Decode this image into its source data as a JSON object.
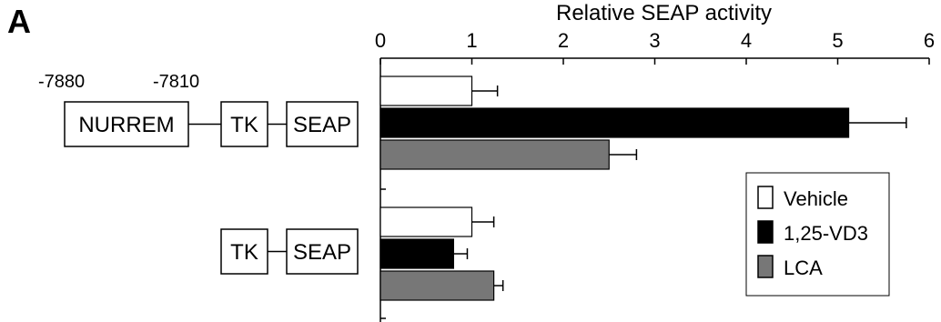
{
  "panel_label": "A",
  "construct_1": {
    "pos_left": "-7880",
    "pos_right": "-7810",
    "boxes": [
      "NURREM",
      "TK",
      "SEAP"
    ]
  },
  "construct_2": {
    "boxes": [
      "TK",
      "SEAP"
    ]
  },
  "chart_data": {
    "type": "bar",
    "orientation": "horizontal",
    "xlabel": "Relative SEAP activity",
    "xlim": [
      0,
      6
    ],
    "xticks": [
      0,
      1,
      2,
      3,
      4,
      5,
      6
    ],
    "xaxis_position": "top",
    "grid": false,
    "legend_position": "bottom-right",
    "categories": [
      "NURREM-TK-SEAP",
      "TK-SEAP"
    ],
    "series": [
      {
        "name": "Vehicle",
        "color": "#ffffff",
        "values": [
          1.0,
          1.0
        ],
        "errors": [
          0.28,
          0.24
        ]
      },
      {
        "name": "1,25-VD3",
        "color": "#000000",
        "values": [
          5.12,
          0.8
        ],
        "errors": [
          0.63,
          0.15
        ]
      },
      {
        "name": "LCA",
        "color": "#777777",
        "values": [
          2.5,
          1.24
        ],
        "errors": [
          0.3,
          0.1
        ]
      }
    ]
  }
}
